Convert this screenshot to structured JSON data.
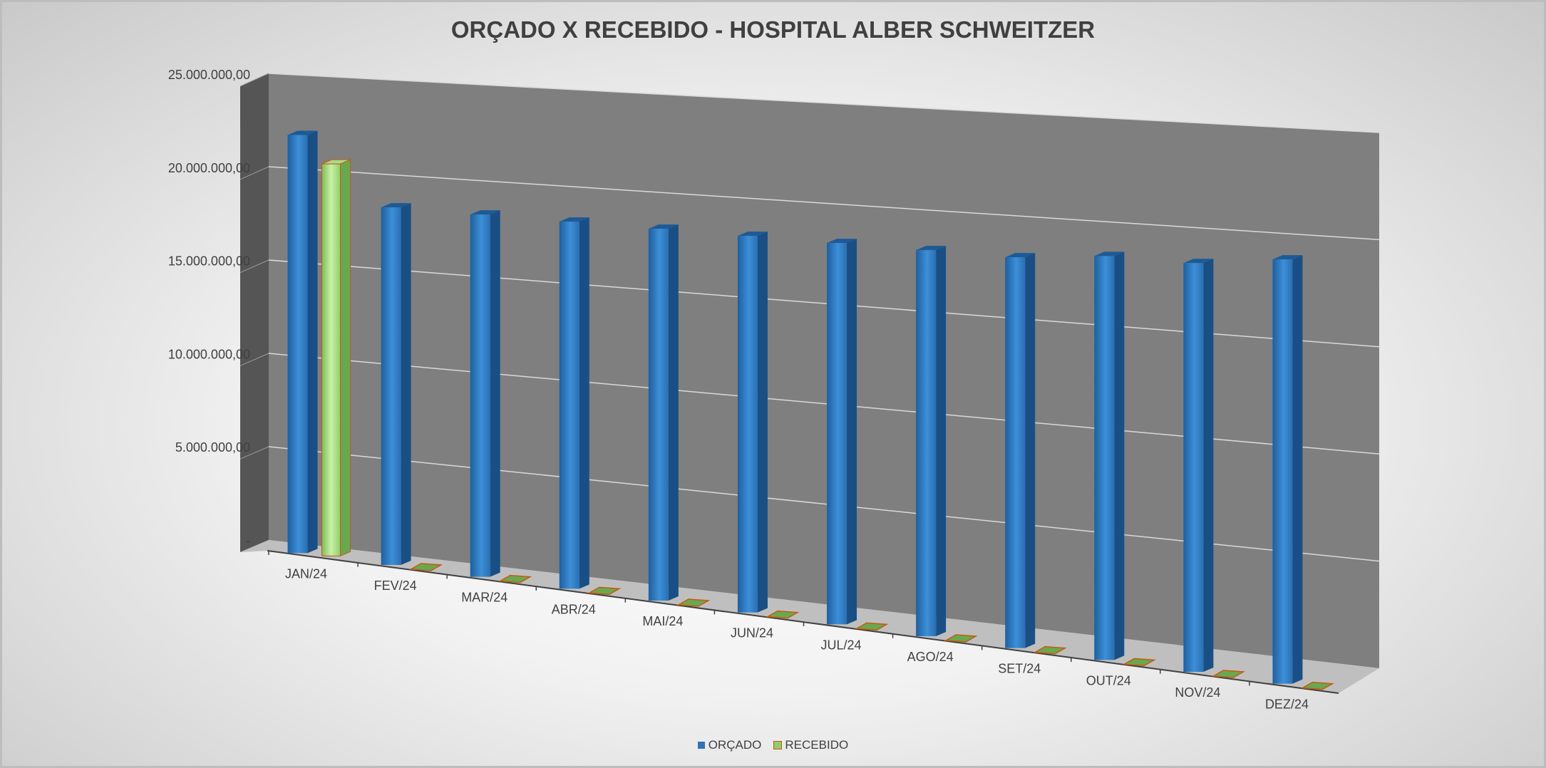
{
  "chart_data": {
    "type": "bar",
    "title": "ORÇADO X RECEBIDO - HOSPITAL ALBER SCHWEITZER",
    "categories": [
      "JAN/24",
      "FEV/24",
      "MAR/24",
      "ABR/24",
      "MAI/24",
      "JUN/24",
      "JUL/24",
      "AGO/24",
      "SET/24",
      "OUT/24",
      "NOV/24",
      "DEZ/24"
    ],
    "series": [
      {
        "name": "ORÇADO",
        "color": "#2e75b6",
        "values": [
          22400000,
          18900000,
          18900000,
          18900000,
          18900000,
          18900000,
          18900000,
          18900000,
          18900000,
          19300000,
          19300000,
          19800000
        ]
      },
      {
        "name": "RECEBIDO",
        "color": "#8fce6b",
        "values": [
          21000000,
          0,
          0,
          0,
          0,
          0,
          0,
          0,
          0,
          0,
          0,
          0
        ]
      }
    ],
    "ylim": [
      0,
      25000000
    ],
    "yticks": [
      {
        "value": 0,
        "label": "-"
      },
      {
        "value": 5000000,
        "label": "5.000.000,00"
      },
      {
        "value": 10000000,
        "label": "10.000.000,00"
      },
      {
        "value": 15000000,
        "label": "15.000.000,00"
      },
      {
        "value": 20000000,
        "label": "20.000.000,00"
      },
      {
        "value": 25000000,
        "label": "25.000.000,00"
      }
    ],
    "grid": true,
    "legend_position": "bottom",
    "style": "3d-perspective"
  }
}
